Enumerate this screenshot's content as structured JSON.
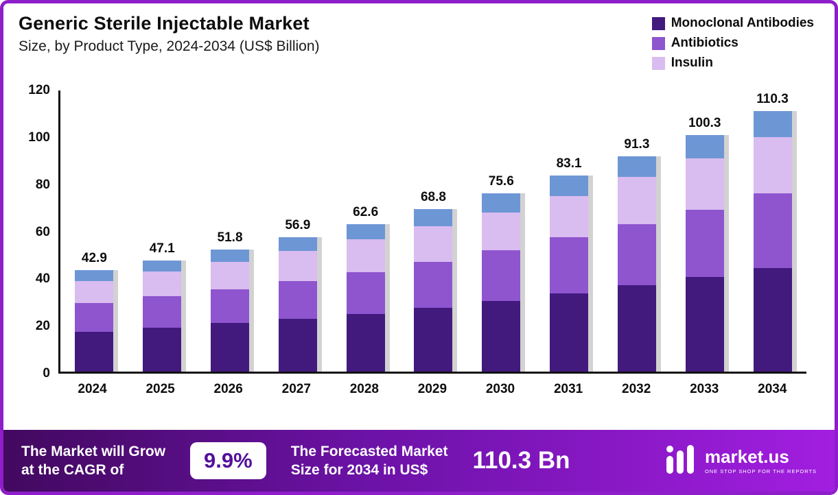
{
  "header": {
    "title": "Generic Sterile Injectable Market",
    "subtitle": "Size, by Product Type, 2024-2034 (US$ Billion)"
  },
  "legend": [
    {
      "label": "Monoclonal Antibodies",
      "color": "#42197d"
    },
    {
      "label": "Antibiotics",
      "color": "#8e55cf"
    },
    {
      "label": "Insulin",
      "color": "#d9bcf0"
    }
  ],
  "chart_data": {
    "type": "bar",
    "stacked": true,
    "title": "Generic Sterile Injectable Market Size, by Product Type, 2024-2034 (US$ Billion)",
    "xlabel": "",
    "ylabel": "US$ Billion",
    "ylim": [
      0,
      120
    ],
    "yticks": [
      0,
      20,
      40,
      60,
      80,
      100,
      120
    ],
    "grid": false,
    "legend_position": "top-right",
    "categories": [
      "2024",
      "2025",
      "2026",
      "2027",
      "2028",
      "2029",
      "2030",
      "2031",
      "2032",
      "2033",
      "2034"
    ],
    "series": [
      {
        "name": "Monoclonal Antibodies",
        "color": "#42197d",
        "values": [
          17.0,
          18.5,
          20.5,
          22.5,
          24.5,
          27.0,
          30.0,
          33.0,
          36.5,
          40.0,
          44.0
        ]
      },
      {
        "name": "Antibiotics",
        "color": "#8e55cf",
        "values": [
          12.0,
          13.5,
          14.5,
          16.0,
          17.5,
          19.5,
          21.5,
          24.0,
          26.0,
          28.5,
          31.5
        ]
      },
      {
        "name": "Insulin",
        "color": "#d9bcf0",
        "values": [
          9.5,
          10.5,
          11.5,
          12.5,
          14.0,
          15.0,
          16.0,
          17.5,
          20.0,
          22.0,
          24.0
        ]
      },
      {
        "name": "",
        "color": "#6d96d5",
        "values": [
          4.4,
          4.6,
          5.3,
          5.9,
          6.6,
          7.3,
          8.1,
          8.6,
          8.8,
          9.8,
          10.8
        ]
      }
    ],
    "totals": [
      42.9,
      47.1,
      51.8,
      56.9,
      62.6,
      68.8,
      75.6,
      83.1,
      91.3,
      100.3,
      110.3
    ]
  },
  "footer": {
    "cagr_text_line1": "The Market will Grow",
    "cagr_text_line2": "at the CAGR of",
    "cagr_value": "9.9%",
    "forecast_text_line1": "The Forecasted Market",
    "forecast_text_line2": "Size for 2034 in US$",
    "forecast_value": "110.3 Bn",
    "brand": {
      "name": "market.us",
      "tagline": "ONE STOP SHOP FOR THE REPORTS"
    }
  }
}
